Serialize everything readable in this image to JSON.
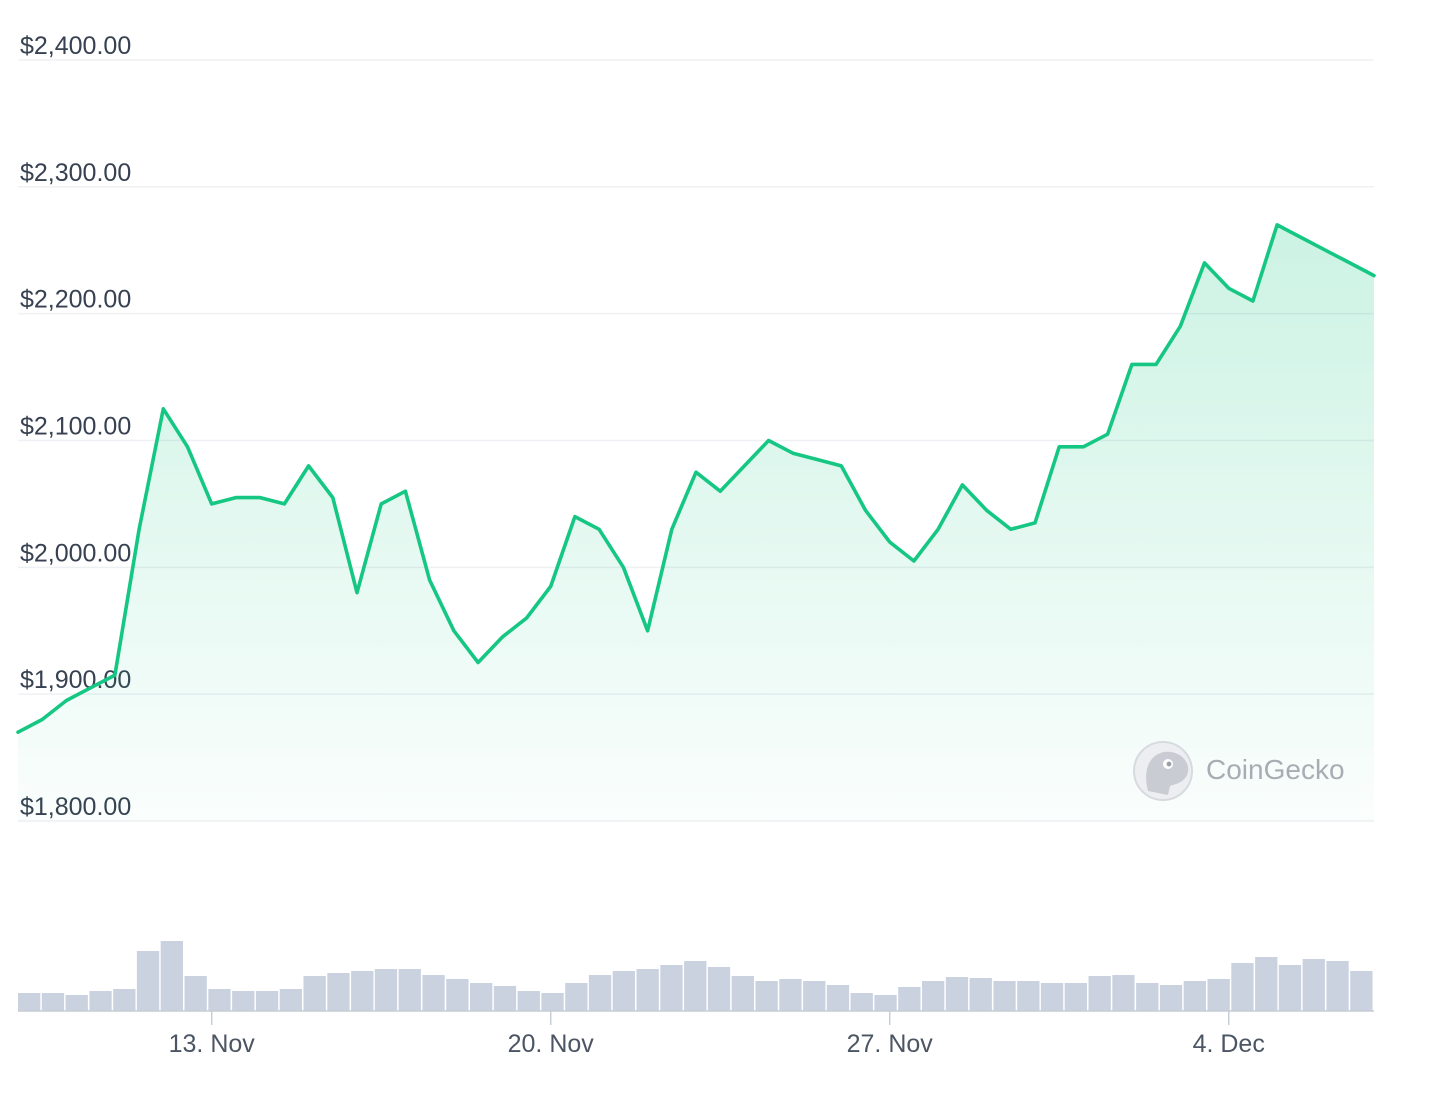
{
  "chart_data": {
    "type": "area",
    "title": "",
    "xlabel": "",
    "ylabel": "",
    "ylim": [
      1800,
      2400
    ],
    "y_ticks": [
      1800,
      1900,
      2000,
      2100,
      2200,
      2300,
      2400
    ],
    "y_tick_labels": [
      "$1,800.00",
      "$1,900.00",
      "$2,000.00",
      "$2,100.00",
      "$2,200.00",
      "$2,300.00",
      "$2,400.00"
    ],
    "x_range": [
      "2023-11-09",
      "2023-12-07"
    ],
    "x_ticks": [
      {
        "date": "2023-11-13",
        "label": "13. Nov"
      },
      {
        "date": "2023-11-20",
        "label": "20. Nov"
      },
      {
        "date": "2023-11-27",
        "label": "27. Nov"
      },
      {
        "date": "2023-12-04",
        "label": "4. Dec"
      }
    ],
    "grid": true,
    "legend": "none",
    "line_color": "#16c784",
    "fill_color": "#16c784",
    "volume_color": "#b8c2d4",
    "watermark": "CoinGecko",
    "series": [
      {
        "x": [
          "2023-11-09",
          "2023-11-09T12:00",
          "2023-11-10",
          "2023-11-10T12:00",
          "2023-11-11",
          "2023-11-11T12:00",
          "2023-11-12",
          "2023-11-12T12:00",
          "2023-11-13",
          "2023-11-13T12:00",
          "2023-11-14",
          "2023-11-14T12:00",
          "2023-11-15",
          "2023-11-15T12:00",
          "2023-11-16",
          "2023-11-16T12:00",
          "2023-11-17",
          "2023-11-17T12:00",
          "2023-11-18",
          "2023-11-18T12:00",
          "2023-11-19",
          "2023-11-19T12:00",
          "2023-11-20",
          "2023-11-20T12:00",
          "2023-11-21",
          "2023-11-21T12:00",
          "2023-11-22",
          "2023-11-22T12:00",
          "2023-11-23",
          "2023-11-23T12:00",
          "2023-11-24",
          "2023-11-24T12:00",
          "2023-11-25",
          "2023-11-25T12:00",
          "2023-11-26",
          "2023-11-26T12:00",
          "2023-11-27",
          "2023-11-27T12:00",
          "2023-11-28",
          "2023-11-28T12:00",
          "2023-11-29",
          "2023-11-29T12:00",
          "2023-11-30",
          "2023-11-30T12:00",
          "2023-12-01",
          "2023-12-01T12:00",
          "2023-12-02",
          "2023-12-02T12:00",
          "2023-12-03",
          "2023-12-03T12:00",
          "2023-12-04",
          "2023-12-04T12:00",
          "2023-12-05",
          "2023-12-05T12:00",
          "2023-12-06",
          "2023-12-06T12:00",
          "2023-12-07"
        ],
        "y": [
          1870,
          1880,
          1895,
          1905,
          1915,
          2030,
          2125,
          2095,
          2050,
          2055,
          2055,
          2050,
          2080,
          2055,
          1980,
          2050,
          2060,
          1990,
          1950,
          1925,
          1945,
          1960,
          1985,
          2040,
          2030,
          2000,
          1950,
          2030,
          2075,
          2060,
          2080,
          2100,
          2090,
          2085,
          2080,
          2045,
          2020,
          2005,
          2030,
          2065,
          2045,
          2030,
          2035,
          2095,
          2095,
          2105,
          2160,
          2160,
          2190,
          2240,
          2220,
          2210,
          2270,
          2260,
          2250,
          2240,
          2230
        ],
        "volume": [
          0.18,
          0.18,
          0.16,
          0.2,
          0.22,
          0.6,
          0.7,
          0.35,
          0.22,
          0.2,
          0.2,
          0.22,
          0.35,
          0.38,
          0.4,
          0.42,
          0.42,
          0.36,
          0.32,
          0.28,
          0.25,
          0.2,
          0.18,
          0.28,
          0.36,
          0.4,
          0.42,
          0.46,
          0.5,
          0.44,
          0.35,
          0.3,
          0.32,
          0.3,
          0.26,
          0.18,
          0.16,
          0.24,
          0.3,
          0.34,
          0.33,
          0.3,
          0.3,
          0.28,
          0.28,
          0.35,
          0.36,
          0.28,
          0.26,
          0.3,
          0.32,
          0.48,
          0.54,
          0.46,
          0.52,
          0.5,
          0.4
        ]
      }
    ]
  }
}
